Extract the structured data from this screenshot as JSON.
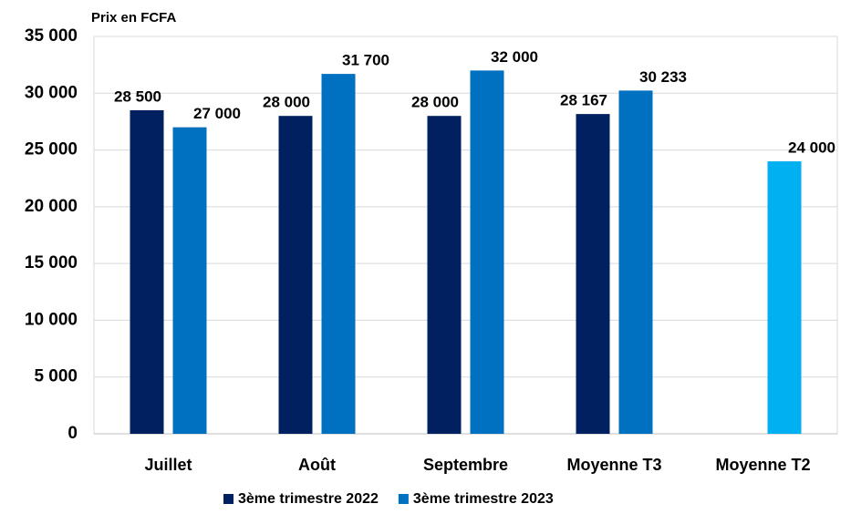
{
  "chart_data": {
    "type": "bar",
    "y_label": "Prix en FCFA",
    "categories": [
      "Juillet",
      "Août",
      "Septembre",
      "Moyenne T3",
      "Moyenne  T2"
    ],
    "series": [
      {
        "name": "3ème trimestre 2022",
        "color": "#002060",
        "values": [
          28500,
          28000,
          28000,
          28167,
          null
        ],
        "value_labels": [
          "28 500",
          "28 000",
          "28 000",
          "28 167",
          null
        ]
      },
      {
        "name": "3ème trimestre 2023",
        "color": "#0070c0",
        "colors": [
          "#0070c0",
          "#0070c0",
          "#0070c0",
          "#0070c0",
          "#00b0f0"
        ],
        "values": [
          27000,
          31700,
          32000,
          30233,
          24000
        ],
        "value_labels": [
          "27 000",
          "31 700",
          "32 000",
          "30 233",
          "24 000"
        ]
      }
    ],
    "ylim": [
      0,
      35000
    ],
    "yticks": [
      0,
      {
        "value": 5000,
        "label": "5 000"
      },
      {
        "value": 10000,
        "label": "10 000"
      },
      {
        "value": 15000,
        "label": "15 000"
      },
      {
        "value": 20000,
        "label": "20 000"
      },
      {
        "value": 25000,
        "label": "25 000"
      },
      {
        "value": 30000,
        "label": "30 000"
      },
      {
        "value": 35000,
        "label": "35 000"
      }
    ],
    "grid": true
  }
}
